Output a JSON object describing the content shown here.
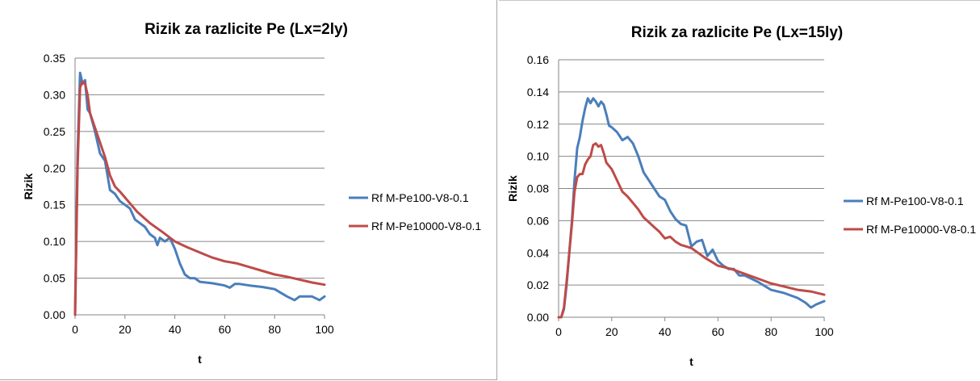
{
  "colors": {
    "series1": "#4a7ebb",
    "series2": "#be4b48",
    "grid": "#868686"
  },
  "chart_data": [
    {
      "type": "line",
      "title": "Rizik za razlicite Pe (Lx=2ly)",
      "xlabel": "t",
      "ylabel": "Rizik",
      "xlim": [
        0,
        100
      ],
      "ylim": [
        0,
        0.35
      ],
      "xticks": [
        "0",
        "20",
        "40",
        "60",
        "80",
        "100"
      ],
      "yticks": [
        "0.00",
        "0.05",
        "0.10",
        "0.15",
        "0.20",
        "0.25",
        "0.30",
        "0.35"
      ],
      "grid": "horizontal",
      "legend": "right",
      "series": [
        {
          "name": "Rf M-Pe100-V8-0.1",
          "x": [
            0,
            1,
            2,
            3,
            4,
            5,
            6,
            8,
            10,
            12,
            14,
            16,
            18,
            20,
            22,
            24,
            26,
            28,
            30,
            32,
            33,
            34,
            36,
            38,
            40,
            42,
            44,
            46,
            48,
            50,
            55,
            60,
            62,
            64,
            66,
            70,
            75,
            80,
            85,
            88,
            90,
            95,
            98,
            100
          ],
          "y": [
            0.0,
            0.22,
            0.33,
            0.315,
            0.32,
            0.28,
            0.275,
            0.25,
            0.22,
            0.21,
            0.17,
            0.165,
            0.155,
            0.15,
            0.145,
            0.13,
            0.125,
            0.12,
            0.11,
            0.105,
            0.095,
            0.105,
            0.1,
            0.105,
            0.09,
            0.07,
            0.055,
            0.05,
            0.05,
            0.045,
            0.043,
            0.04,
            0.037,
            0.042,
            0.042,
            0.04,
            0.038,
            0.035,
            0.025,
            0.02,
            0.025,
            0.025,
            0.02,
            0.025
          ]
        },
        {
          "name": "Rf M-Pe10000-V8-0.1",
          "x": [
            0,
            1,
            2,
            3,
            4,
            5,
            6,
            8,
            10,
            12,
            14,
            16,
            18,
            20,
            25,
            30,
            35,
            40,
            45,
            50,
            55,
            60,
            65,
            70,
            75,
            80,
            85,
            90,
            95,
            100
          ],
          "y": [
            0.0,
            0.2,
            0.31,
            0.318,
            0.315,
            0.3,
            0.275,
            0.255,
            0.235,
            0.215,
            0.19,
            0.175,
            0.168,
            0.16,
            0.14,
            0.125,
            0.113,
            0.1,
            0.092,
            0.085,
            0.078,
            0.073,
            0.07,
            0.065,
            0.06,
            0.055,
            0.052,
            0.048,
            0.044,
            0.041
          ]
        }
      ]
    },
    {
      "type": "line",
      "title": "Rizik za razlicite Pe (Lx=15ly)",
      "xlabel": "t",
      "ylabel": "Rizik",
      "xlim": [
        0,
        100
      ],
      "ylim": [
        0,
        0.16
      ],
      "xticks": [
        "0",
        "20",
        "40",
        "60",
        "80",
        "100"
      ],
      "yticks": [
        "0.00",
        "0.02",
        "0.04",
        "0.06",
        "0.08",
        "0.10",
        "0.12",
        "0.14",
        "0.16"
      ],
      "grid": "horizontal",
      "legend": "right",
      "series": [
        {
          "name": "Rf M-Pe100-V8-0.1",
          "x": [
            0,
            1,
            2,
            3,
            4,
            5,
            6,
            7,
            8,
            9,
            10,
            11,
            12,
            13,
            14,
            15,
            16,
            17,
            18,
            19,
            20,
            22,
            24,
            26,
            28,
            30,
            32,
            34,
            36,
            38,
            40,
            42,
            44,
            46,
            48,
            50,
            52,
            54,
            56,
            58,
            60,
            62,
            64,
            66,
            68,
            70,
            75,
            80,
            85,
            90,
            93,
            95,
            97,
            100
          ],
          "y": [
            0.0,
            0.0,
            0.005,
            0.02,
            0.04,
            0.06,
            0.085,
            0.105,
            0.112,
            0.122,
            0.13,
            0.136,
            0.133,
            0.136,
            0.134,
            0.131,
            0.134,
            0.132,
            0.126,
            0.119,
            0.118,
            0.115,
            0.11,
            0.112,
            0.108,
            0.1,
            0.09,
            0.085,
            0.08,
            0.075,
            0.073,
            0.066,
            0.061,
            0.058,
            0.057,
            0.044,
            0.047,
            0.048,
            0.038,
            0.042,
            0.035,
            0.032,
            0.03,
            0.03,
            0.026,
            0.026,
            0.022,
            0.017,
            0.015,
            0.012,
            0.009,
            0.006,
            0.008,
            0.01
          ]
        },
        {
          "name": "Rf M-Pe10000-V8-0.1",
          "x": [
            0,
            1,
            2,
            3,
            4,
            5,
            6,
            7,
            8,
            9,
            10,
            11,
            12,
            13,
            14,
            15,
            16,
            17,
            18,
            19,
            20,
            22,
            24,
            26,
            28,
            30,
            32,
            34,
            36,
            38,
            40,
            42,
            44,
            46,
            48,
            50,
            55,
            60,
            65,
            70,
            75,
            80,
            85,
            90,
            95,
            100
          ],
          "y": [
            0.0,
            0.0,
            0.006,
            0.022,
            0.04,
            0.058,
            0.078,
            0.087,
            0.089,
            0.089,
            0.095,
            0.098,
            0.1,
            0.107,
            0.108,
            0.106,
            0.107,
            0.102,
            0.096,
            0.094,
            0.092,
            0.085,
            0.078,
            0.075,
            0.071,
            0.067,
            0.062,
            0.059,
            0.056,
            0.053,
            0.049,
            0.05,
            0.047,
            0.045,
            0.044,
            0.043,
            0.037,
            0.032,
            0.03,
            0.027,
            0.024,
            0.021,
            0.019,
            0.017,
            0.016,
            0.014
          ]
        }
      ]
    }
  ]
}
